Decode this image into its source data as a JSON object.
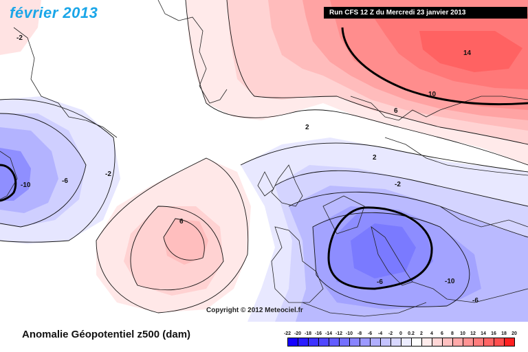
{
  "header": {
    "title_month": "février 2013",
    "run_info": "Run CFS 12 Z du Mercredi 23 janvier 2013"
  },
  "footer": {
    "anomaly_title": "Anomalie Géopotentiel z500 (dam)",
    "copyright": "Copyright © 2012 Meteociel.fr"
  },
  "contour_labels": [
    "14",
    "10",
    "6",
    "2",
    "-2",
    "-6",
    "-10",
    "6",
    "2",
    "-2",
    "-6",
    "-10",
    "-6",
    "-2"
  ],
  "colorbar": {
    "ticks": [
      "-22",
      "-20",
      "-18",
      "-16",
      "-14",
      "-12",
      "-10",
      "-8",
      "-6",
      "-4",
      "-2",
      "0",
      "0.2",
      "2",
      "4",
      "6",
      "8",
      "10",
      "12",
      "14",
      "16",
      "18",
      "20"
    ],
    "colors": [
      "#1500ff",
      "#2a1dff",
      "#3d33ff",
      "#5047ff",
      "#625cff",
      "#7470ff",
      "#8884ff",
      "#9c99ff",
      "#b0aeff",
      "#c4c3ff",
      "#d8d7ff",
      "#ececff",
      "#ffffff",
      "#ffecec",
      "#ffd6d6",
      "#ffc0c0",
      "#ffa9a9",
      "#ff9393",
      "#ff7c7c",
      "#ff6565",
      "#ff4e4e",
      "#ff2020"
    ]
  },
  "colors": {
    "title": "#1aa6e8",
    "banner_bg": "#000000"
  }
}
